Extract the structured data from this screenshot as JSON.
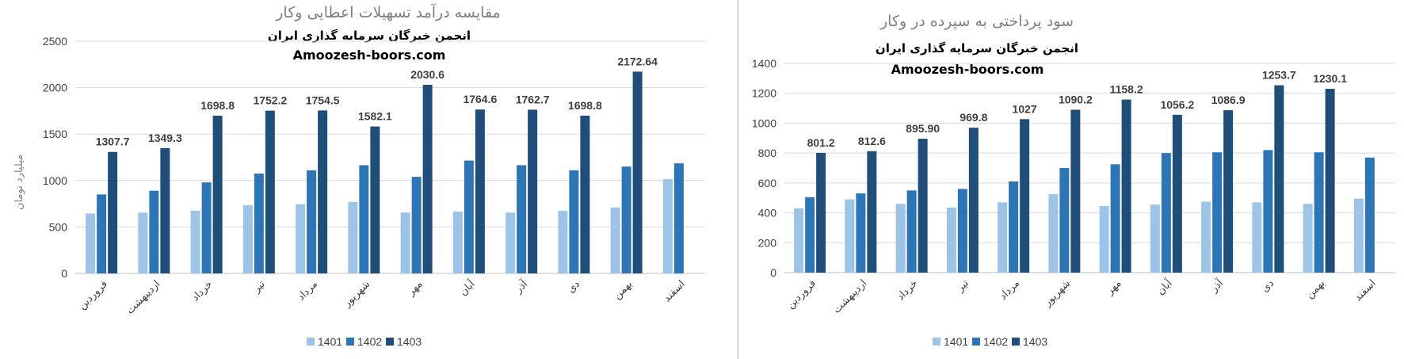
{
  "watermark": {
    "line1": "انجمن خبرگان سرمایه گذاری ایران",
    "line2": "Amoozesh-boors.com"
  },
  "colors": {
    "1401": "#9dc3e6",
    "1402": "#2e75b6",
    "1403": "#1f4e79",
    "grid": "#d9d9d9",
    "axis": "#bfbfbf"
  },
  "chart_data": [
    {
      "type": "bar",
      "title": "مقایسه درآمد تسهیلات اعطایی وکار",
      "ylabel": "میلیارد تومان",
      "xlabel": "",
      "ylim": [
        0,
        2500
      ],
      "yticks": [
        0,
        500,
        1000,
        1500,
        2000,
        2500
      ],
      "grid": true,
      "legend_position": "bottom",
      "categories": [
        "فروردین",
        "اردیبهشت",
        "خرداد",
        "تیر",
        "مرداد",
        "شهریور",
        "مهر",
        "آبان",
        "آذر",
        "دی",
        "بهمن",
        "اسفند"
      ],
      "series": [
        {
          "name": "1401",
          "values": [
            645,
            655,
            675,
            735,
            745,
            770,
            655,
            665,
            655,
            675,
            710,
            1015
          ]
        },
        {
          "name": "1402",
          "values": [
            850,
            890,
            980,
            1075,
            1110,
            1165,
            1040,
            1215,
            1165,
            1110,
            1150,
            1185
          ]
        },
        {
          "name": "1403",
          "values": [
            1307.7,
            1349.3,
            1698.8,
            1752.2,
            1754.5,
            1582.1,
            2030.6,
            1764.6,
            1762.7,
            1698.8,
            2172.64,
            null
          ]
        }
      ],
      "data_labels": [
        "1307.7",
        "1349.3",
        "1698.8",
        "1752.2",
        "1754.5",
        "1582.1",
        "2030.6",
        "1764.6",
        "1762.7",
        "1698.8",
        "2172.64",
        ""
      ]
    },
    {
      "type": "bar",
      "title": "سود پرداختی به سپرده در وکار",
      "ylabel": "",
      "xlabel": "",
      "ylim": [
        0,
        1400
      ],
      "yticks": [
        0,
        200,
        400,
        600,
        800,
        1000,
        1200,
        1400
      ],
      "grid": true,
      "legend_position": "bottom",
      "categories": [
        "فروردین",
        "اردیبهشت",
        "خرداد",
        "تیر",
        "مرداد",
        "شهریور",
        "مهر",
        "آبان",
        "آذر",
        "دی",
        "بهمن",
        "اسفند"
      ],
      "series": [
        {
          "name": "1401",
          "values": [
            430,
            490,
            460,
            435,
            470,
            525,
            445,
            455,
            475,
            470,
            460,
            495
          ]
        },
        {
          "name": "1402",
          "values": [
            505,
            530,
            550,
            560,
            610,
            700,
            725,
            800,
            805,
            820,
            805,
            770
          ]
        },
        {
          "name": "1403",
          "values": [
            801.2,
            812.6,
            895.9,
            969.8,
            1027,
            1090.2,
            1158.2,
            1056.2,
            1086.9,
            1253.7,
            1230.1,
            null
          ]
        }
      ],
      "data_labels": [
        "801.2",
        "812.6",
        "895.90",
        "969.8",
        "1027",
        "1090.2",
        "1158.2",
        "1056.2",
        "1086.9",
        "1253.7",
        "1230.1",
        ""
      ]
    }
  ]
}
